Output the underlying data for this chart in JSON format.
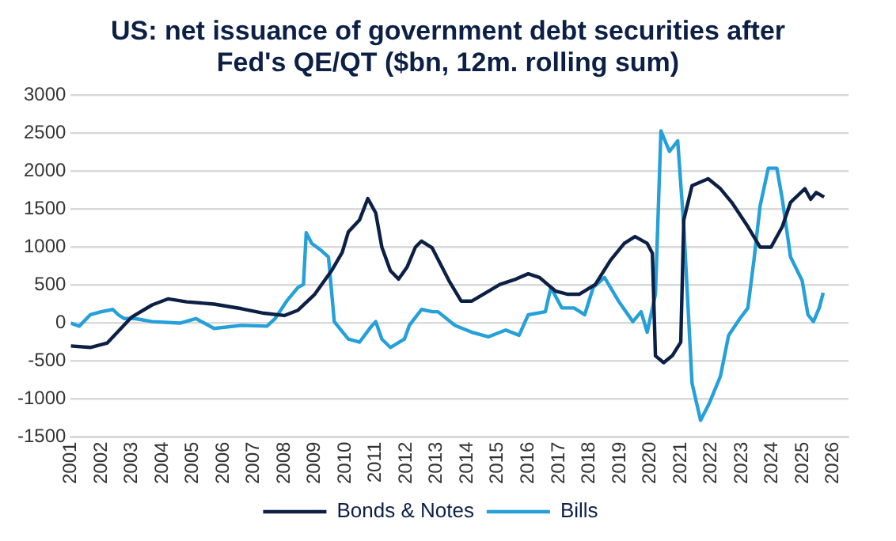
{
  "chart_data": {
    "type": "line",
    "title": "US: net issuance of government debt securities after Fed's QE/QT ($bn, 12m. rolling sum)",
    "xlim": [
      2001,
      2026.5
    ],
    "xticks": [
      2001,
      2002,
      2003,
      2004,
      2005,
      2006,
      2007,
      2008,
      2009,
      2010,
      2011,
      2012,
      2013,
      2014,
      2015,
      2016,
      2017,
      2018,
      2019,
      2020,
      2021,
      2022,
      2023,
      2024,
      2025,
      2026
    ],
    "ylim": [
      -1500,
      3000
    ],
    "yticks": [
      -1500,
      -1000,
      -500,
      0,
      500,
      1000,
      1500,
      2000,
      2500,
      3000
    ],
    "grid": "y",
    "legend": "bottom",
    "marker": "none",
    "line_style": "solid",
    "series": [
      {
        "name": "Bonds & Notes",
        "color": "#0c1f45",
        "x": [
          2001.0,
          2001.64,
          2002.2,
          2003.0,
          2003.67,
          2004.2,
          2004.8,
          2005.7,
          2006.6,
          2007.34,
          2008.0,
          2008.45,
          2009.0,
          2009.55,
          2009.9,
          2010.1,
          2010.47,
          2010.74,
          2011.0,
          2011.2,
          2011.48,
          2011.75,
          2012.03,
          2012.3,
          2012.5,
          2012.85,
          2013.4,
          2013.8,
          2014.15,
          2014.7,
          2015.07,
          2015.6,
          2016.0,
          2016.37,
          2016.9,
          2017.3,
          2017.67,
          2018.2,
          2018.7,
          2019.15,
          2019.5,
          2019.9,
          2020.07,
          2020.17,
          2020.44,
          2020.72,
          2021.0,
          2021.1,
          2021.37,
          2021.9,
          2022.3,
          2022.67,
          2023.2,
          2023.6,
          2023.96,
          2024.33,
          2024.6,
          2025.07,
          2025.26,
          2025.44,
          2025.7
        ],
        "values": [
          -300,
          -320,
          -260,
          80,
          240,
          320,
          280,
          250,
          190,
          130,
          100,
          170,
          380,
          690,
          930,
          1200,
          1360,
          1640,
          1450,
          1000,
          690,
          580,
          740,
          1000,
          1080,
          990,
          560,
          290,
          290,
          420,
          510,
          580,
          650,
          600,
          420,
          380,
          380,
          510,
          830,
          1050,
          1140,
          1050,
          920,
          -430,
          -520,
          -430,
          -250,
          1360,
          1810,
          1900,
          1770,
          1590,
          1270,
          1000,
          1000,
          1270,
          1590,
          1770,
          1630,
          1720,
          1660
        ]
      },
      {
        "name": "Bills",
        "color": "#25a0d9",
        "x": [
          2001.0,
          2001.28,
          2001.64,
          2002.0,
          2002.38,
          2002.56,
          2002.75,
          2003.1,
          2003.67,
          2004.58,
          2005.1,
          2005.7,
          2006.6,
          2007.43,
          2007.7,
          2008.08,
          2008.45,
          2008.63,
          2008.72,
          2008.9,
          2009.2,
          2009.45,
          2009.64,
          2009.92,
          2010.1,
          2010.47,
          2010.84,
          2011.0,
          2011.2,
          2011.48,
          2011.94,
          2012.1,
          2012.5,
          2012.86,
          2013.04,
          2013.6,
          2014.15,
          2014.7,
          2015.26,
          2015.7,
          2016.0,
          2016.56,
          2016.74,
          2017.1,
          2017.5,
          2017.85,
          2018.13,
          2018.5,
          2018.96,
          2019.43,
          2019.7,
          2019.9,
          2020.17,
          2020.35,
          2020.63,
          2020.9,
          2021.1,
          2021.37,
          2021.65,
          2021.93,
          2022.3,
          2022.57,
          2022.94,
          2023.2,
          2023.4,
          2023.6,
          2023.87,
          2024.15,
          2024.33,
          2024.6,
          2024.98,
          2025.17,
          2025.35,
          2025.54,
          2025.67
        ],
        "values": [
          0,
          -40,
          110,
          150,
          180,
          110,
          60,
          60,
          20,
          0,
          60,
          -70,
          -30,
          -40,
          60,
          290,
          470,
          510,
          1190,
          1050,
          960,
          870,
          20,
          -120,
          -210,
          -250,
          -50,
          20,
          -210,
          -320,
          -210,
          -30,
          180,
          150,
          150,
          -30,
          -120,
          -180,
          -90,
          -160,
          110,
          150,
          470,
          200,
          200,
          110,
          470,
          600,
          290,
          20,
          150,
          -120,
          380,
          2530,
          2260,
          2400,
          1270,
          -790,
          -1280,
          -1060,
          -700,
          -160,
          60,
          200,
          830,
          1540,
          2040,
          2040,
          1630,
          870,
          560,
          110,
          20,
          200,
          400
        ]
      }
    ]
  }
}
